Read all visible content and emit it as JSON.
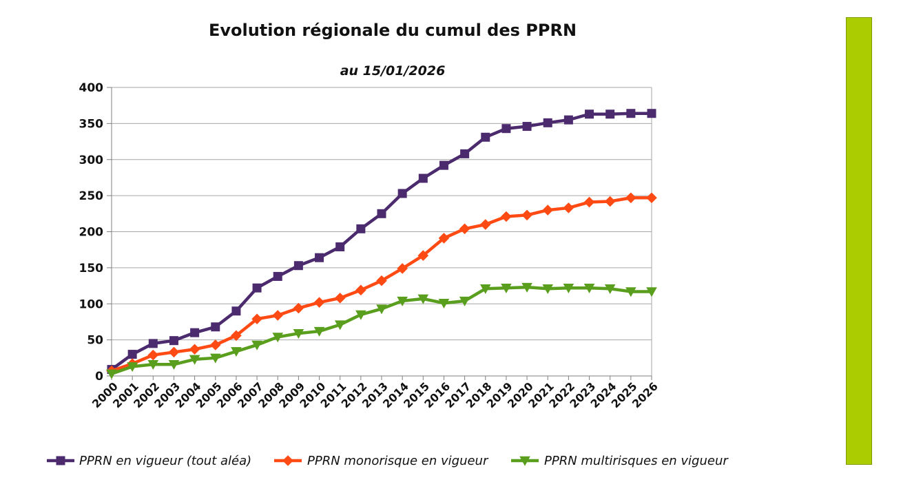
{
  "chart_data": {
    "type": "line",
    "title": "Evolution régionale du cumul des PPRN",
    "subtitle": "au 15/01/2026",
    "xlabel": "",
    "ylabel": "",
    "ylim": [
      0,
      400
    ],
    "yticks": [
      0,
      50,
      100,
      150,
      200,
      250,
      300,
      350,
      400
    ],
    "grid": true,
    "legend_position": "bottom",
    "categories": [
      "2000",
      "2001",
      "2002",
      "2003",
      "2004",
      "2005",
      "2006",
      "2007",
      "2008",
      "2009",
      "2010",
      "2011",
      "2012",
      "2013",
      "2014",
      "2015",
      "2016",
      "2017",
      "2018",
      "2019",
      "2020",
      "2021",
      "2022",
      "2023",
      "2024",
      "2025",
      "2026"
    ],
    "series": [
      {
        "name": "PPRN en vigueur (tout aléa)",
        "color": "#4b2a6e",
        "marker": "square",
        "values": [
          9,
          30,
          45,
          49,
          60,
          68,
          90,
          122,
          138,
          153,
          164,
          179,
          204,
          225,
          253,
          274,
          292,
          308,
          331,
          343,
          346,
          351,
          355,
          363,
          363,
          364,
          364
        ]
      },
      {
        "name": "PPRN monorisque en vigueur",
        "color": "#ff4a14",
        "marker": "diamond",
        "values": [
          7,
          17,
          29,
          33,
          37,
          43,
          56,
          79,
          84,
          94,
          102,
          108,
          119,
          132,
          149,
          167,
          191,
          204,
          210,
          221,
          223,
          230,
          233,
          241,
          242,
          247,
          247
        ]
      },
      {
        "name": "PPRN multirisques en vigueur",
        "color": "#5a9e1e",
        "marker": "triangle-down",
        "values": [
          3,
          13,
          16,
          16,
          23,
          25,
          34,
          43,
          54,
          59,
          62,
          71,
          85,
          93,
          104,
          107,
          101,
          104,
          121,
          122,
          123,
          121,
          122,
          122,
          121,
          117,
          117
        ]
      }
    ]
  },
  "decor": {
    "side_bar_color": "#aacc00"
  }
}
